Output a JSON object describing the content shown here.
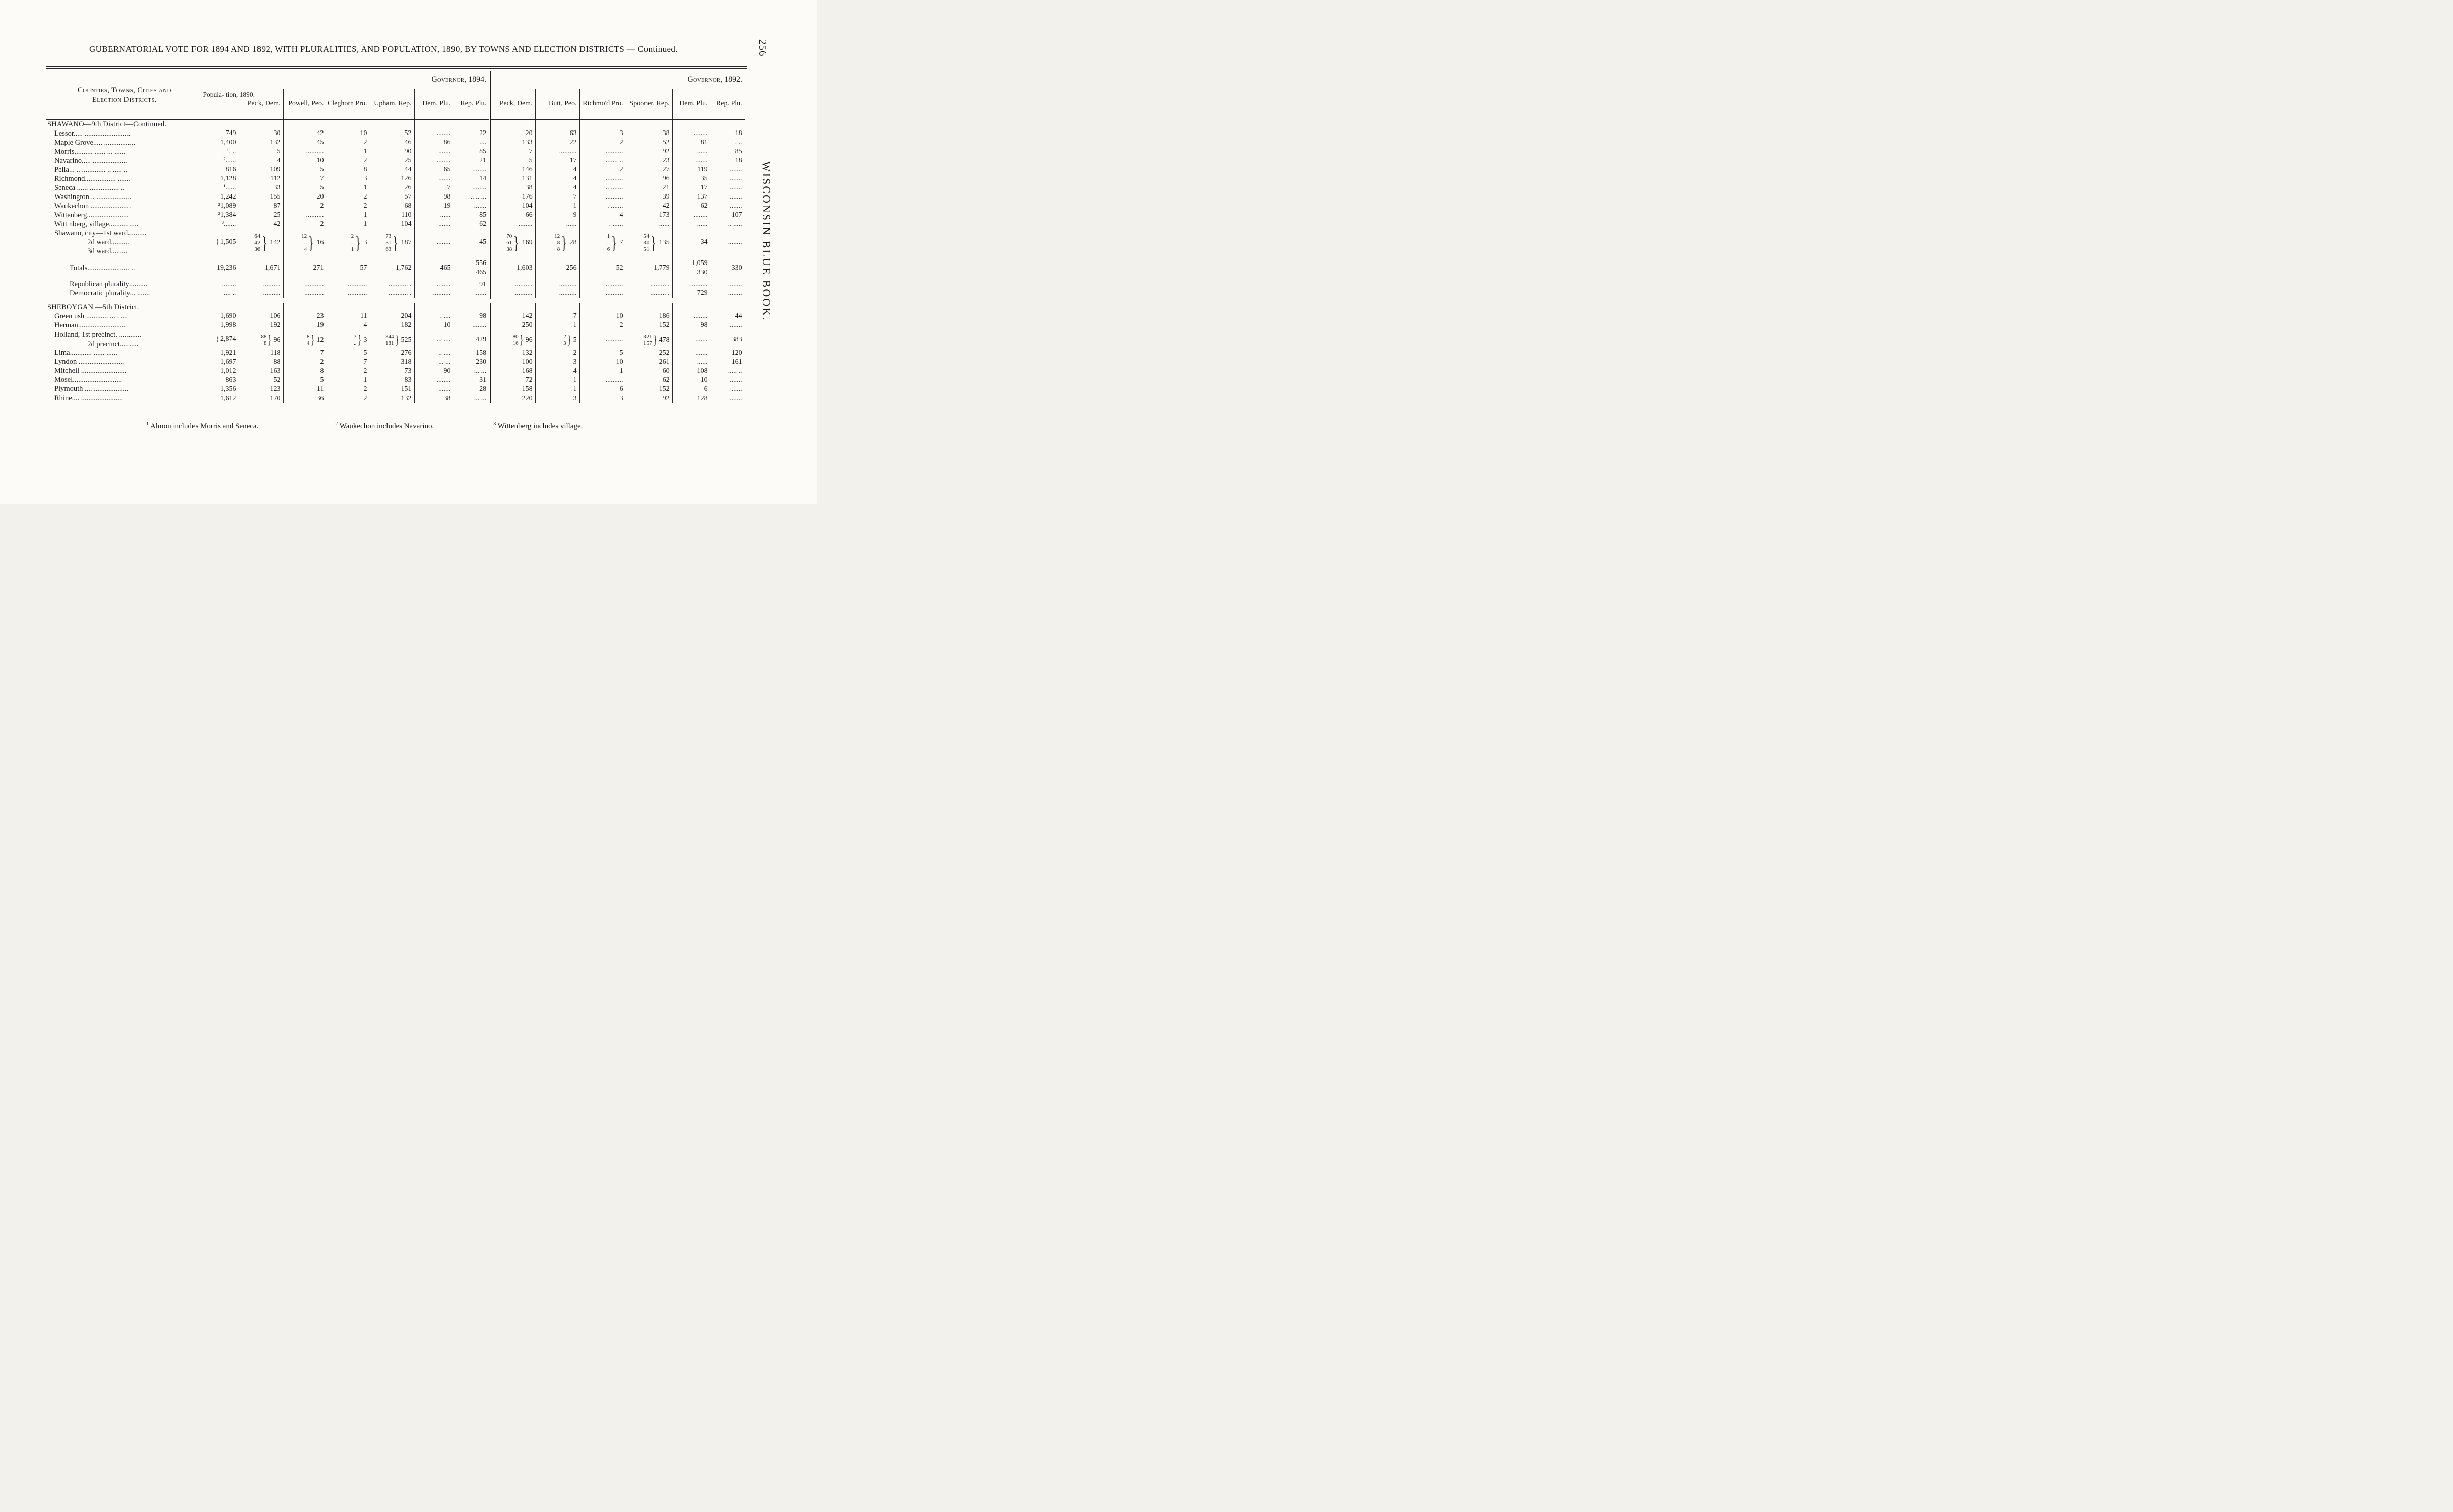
{
  "page": {
    "title": "GUBERNATORIAL VOTE FOR 1894 AND 1892, WITH PLURALITIES, AND POPULATION, 1890, BY TOWNS AND ELECTION DISTRICTS — Continued.",
    "page_number": "256",
    "side_text": "WISCONSIN BLUE BOOK."
  },
  "table": {
    "col_headers": {
      "districts": "Counties, Towns, Cities and\nElection Districts.",
      "population": "Popula-\ntion,\n1890.",
      "gov1894": "Governor, 1894.",
      "gov1892": "Governor, 1892.",
      "sub1894": [
        "Peck,\nDem.",
        "Powell,\nPeo.",
        "Cleghorn\nPro.",
        "Upham,\nRep.",
        "Dem.\nPlu.",
        "Rep.\nPlu."
      ],
      "sub1892": [
        "Peck,\nDem.",
        "Butt,\nPeo.",
        "Richmo'd\nPro.",
        "Spooner,\nRep.",
        "Dem.\nPlu.",
        "Rep.\nPlu."
      ]
    },
    "rows": [
      {
        "type": "section",
        "name": "SHAWANO—9th District—Continued."
      },
      {
        "type": "data",
        "name": "Lessor..... .........................",
        "cells": [
          "749",
          "30",
          "42",
          "10",
          "52",
          "........",
          "22",
          "20",
          "63",
          "3",
          "38",
          "........",
          "18"
        ]
      },
      {
        "type": "data",
        "name": "Maple Grove..... .................",
        "cells": [
          "1,400",
          "132",
          "45",
          "2",
          "46",
          "86",
          "....",
          "133",
          "22",
          "2",
          "52",
          "81",
          ". .."
        ]
      },
      {
        "type": "data",
        "name": "Morris.......... ...... ... ......",
        "cells": [
          "¹. ..",
          "5",
          "..........",
          "1",
          "90",
          ".......",
          "85",
          "7",
          "..........",
          "..........",
          "92",
          "......",
          "85"
        ]
      },
      {
        "type": "data",
        "name": "Navarino..... ...................",
        "cells": [
          "²......",
          "4",
          "10",
          "2",
          "25",
          "........",
          "21",
          "5",
          "17",
          "....... ..",
          "23",
          ".......",
          "18"
        ]
      },
      {
        "type": "data",
        "name": "Pella... .. ............. .. ..... ..",
        "cells": [
          "816",
          "109",
          "5",
          "8",
          "44",
          "65",
          "........",
          "146",
          "4",
          "2",
          "27",
          "119",
          "......."
        ]
      },
      {
        "type": "data",
        "name": "Richmond................. .......",
        "cells": [
          "1,128",
          "112",
          "7",
          "3",
          "126",
          ".......",
          "14",
          "131",
          "4",
          "..........",
          "96",
          "35",
          "......."
        ]
      },
      {
        "type": "data",
        "name": "Seneca ...... ................ ..",
        "cells": [
          "¹......",
          "33",
          "5",
          "1",
          "26",
          "7",
          "........",
          "38",
          "4",
          ".. .......",
          "21",
          "17",
          "......."
        ]
      },
      {
        "type": "data",
        "name": "Washington .. ...................",
        "cells": [
          "1,242",
          "155",
          "20",
          "2",
          "57",
          "98",
          ".. .. ...",
          "176",
          "7",
          "..........",
          "39",
          "137",
          "......."
        ]
      },
      {
        "type": "data",
        "name": "Waukechon ......................",
        "cells": [
          "²1,089",
          "87",
          "2",
          "2",
          "68",
          "19",
          ".......",
          "104",
          "1",
          ". .......",
          "42",
          "62",
          "......."
        ]
      },
      {
        "type": "data",
        "name": "Wittenberg.......................",
        "cells": [
          "³1,384",
          "25",
          "..........",
          "1",
          "110",
          "......",
          "85",
          "66",
          "9",
          "4",
          "173",
          "........",
          "107"
        ]
      },
      {
        "type": "data",
        "name": "Witt nberg, village................",
        "cells": [
          "³.......",
          "42",
          "2",
          "1",
          "104",
          ".......",
          "62",
          "........",
          "......",
          ". ......",
          "......",
          "......",
          ".. ....."
        ]
      },
      {
        "type": "data",
        "multiline": true,
        "name": "Shawano, city—1st ward..........\n                  2d ward..........\n                  3d ward.... ....",
        "cells": [
          {
            "left_brace": true,
            "total": "1,505"
          },
          {
            "sub": [
              "64",
              "42",
              "36"
            ],
            "total": "142"
          },
          {
            "sub": [
              "12",
              "..",
              "4"
            ],
            "total": "16"
          },
          {
            "sub": [
              "2",
              "..",
              "1"
            ],
            "total": "3"
          },
          {
            "sub": [
              "73",
              "51",
              "63"
            ],
            "total": "187"
          },
          "........",
          "45",
          {
            "sub": [
              "70",
              "61",
              "38"
            ],
            "total": "169"
          },
          {
            "sub": [
              "12",
              "8",
              "8"
            ],
            "total": "28"
          },
          {
            "sub": [
              "1",
              "..",
              "6"
            ],
            "total": "7"
          },
          {
            "sub": [
              "54",
              "30",
              "51"
            ],
            "total": "135"
          },
          "34",
          "........"
        ]
      },
      {
        "type": "spacer"
      },
      {
        "type": "data",
        "indent": "totals",
        "name": "Totals................. ..... ..",
        "cells": [
          "19,236",
          "1,671",
          "271",
          "57",
          "1,762",
          "465",
          {
            "stack": [
              "556",
              "465"
            ],
            "underline": true
          },
          "1,603",
          "256",
          "52",
          "1,779",
          {
            "stack": [
              "1,059",
              "330"
            ],
            "underline": true
          },
          "330"
        ]
      },
      {
        "type": "spacer"
      },
      {
        "type": "data",
        "indent": "totals",
        "name": "Republican plurality..........",
        "cells": [
          "........",
          "..........",
          "...........",
          "...........",
          "........... .",
          ".. .....",
          "91",
          "..........",
          "..........",
          ".. .......",
          "......... .",
          "..........",
          "........"
        ]
      },
      {
        "type": "data",
        "indent": "totals",
        "name": "Democratic plurality... .......",
        "cells": [
          ".... ..",
          "..........",
          "...........",
          "...........",
          "........... .",
          "..........",
          "......",
          "..........",
          "..........",
          "..........",
          "......... .",
          "729",
          "........"
        ]
      },
      {
        "type": "hrule"
      },
      {
        "type": "section",
        "name": "SHEBOYGAN —5th District."
      },
      {
        "type": "data",
        "name": "Green ush ............ ... . ....",
        "cells": [
          "1,690",
          "106",
          "23",
          "11",
          "204",
          ". ....",
          "98",
          "142",
          "7",
          "10",
          "186",
          "........",
          "44"
        ]
      },
      {
        "type": "data",
        "name": "Herman..........................",
        "cells": [
          "1,998",
          "192",
          "19",
          "4",
          "182",
          "10",
          "........",
          "250",
          "1",
          "2",
          "152",
          "98",
          "......."
        ]
      },
      {
        "type": "data",
        "multiline": true,
        "name": "Holland, 1st precinct. ............\n                  2d precinct..........",
        "cells": [
          {
            "left_brace": true,
            "total": "2,874"
          },
          {
            "sub": [
              "88",
              "8"
            ],
            "total": "96"
          },
          {
            "sub": [
              "8",
              "4"
            ],
            "total": "12"
          },
          {
            "sub": [
              "3",
              ".."
            ],
            "total": "3"
          },
          {
            "sub": [
              "344",
              "181"
            ],
            "total": "525"
          },
          "... ....",
          "429",
          {
            "sub": [
              "80",
              "16"
            ],
            "total": "96"
          },
          {
            "sub": [
              "2",
              "3"
            ],
            "total": "5"
          },
          "..........",
          {
            "sub": [
              "321",
              "157"
            ],
            "total": "478"
          },
          ".......",
          "383"
        ]
      },
      {
        "type": "data",
        "name": "Lima............ ...... ......",
        "cells": [
          "1,921",
          "118",
          "7",
          "5",
          "276",
          ".. ....",
          "158",
          "132",
          "2",
          "5",
          "252",
          ".......",
          "120"
        ]
      },
      {
        "type": "data",
        "name": "Lyndon .........................",
        "cells": [
          "1,697",
          "88",
          "2",
          "7",
          "318",
          "... ...",
          "230",
          "100",
          "3",
          "10",
          "261",
          "......",
          "161"
        ]
      },
      {
        "type": "data",
        "name": "Mitchell .........................",
        "cells": [
          "1,012",
          "163",
          "8",
          "2",
          "73",
          "90",
          "... ...",
          "168",
          "4",
          "1",
          "60",
          "108",
          "..... .."
        ]
      },
      {
        "type": "data",
        "name": "Mosel...........................",
        "cells": [
          "863",
          "52",
          "5",
          "1",
          "83",
          "........",
          "31",
          "72",
          "1",
          "..........",
          "62",
          "10",
          "......."
        ]
      },
      {
        "type": "data",
        "name": "Plymouth .... ...................",
        "cells": [
          "1,356",
          "123",
          "11",
          "2",
          "151",
          ".......",
          "28",
          "158",
          "1",
          "6",
          "152",
          "6",
          "......"
        ]
      },
      {
        "type": "data",
        "name": "Rhine.... .......................",
        "cells": [
          "1,612",
          "170",
          "36",
          "2",
          "132",
          "38",
          "... ...",
          "220",
          "3",
          "3",
          "92",
          "128",
          "......."
        ]
      }
    ]
  },
  "footnotes": [
    {
      "marker": "1",
      "text": "Almon includes Morris and Seneca."
    },
    {
      "marker": "2",
      "text": "Waukechon includes Navarino."
    },
    {
      "marker": "3",
      "text": "Wittenberg includes village."
    }
  ]
}
